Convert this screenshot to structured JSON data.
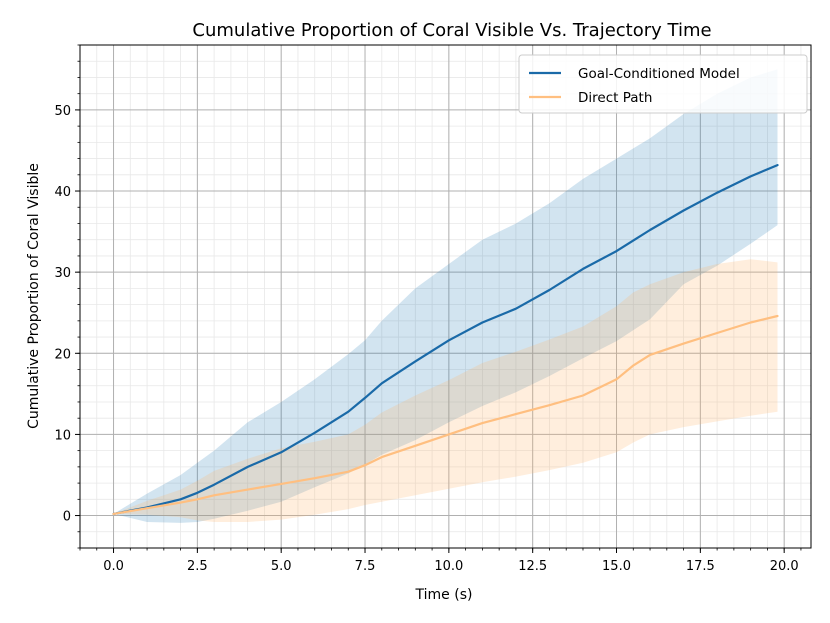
{
  "chart_data": {
    "type": "line",
    "title": "Cumulative Proportion of Coral Visible Vs. Trajectory Time",
    "xlabel": "Time (s)",
    "ylabel": "Cumulative Proportion of Coral Visible",
    "xlim": [
      -1.0,
      20.8
    ],
    "ylim": [
      -4.0,
      58.0
    ],
    "xticks": [
      0.0,
      2.5,
      5.0,
      7.5,
      10.0,
      12.5,
      15.0,
      17.5,
      20.0
    ],
    "xtick_labels": [
      "0.0",
      "2.5",
      "5.0",
      "7.5",
      "10.0",
      "12.5",
      "15.0",
      "17.5",
      "20.0"
    ],
    "yticks": [
      0,
      10,
      20,
      30,
      40,
      50
    ],
    "ytick_labels": [
      "0",
      "10",
      "20",
      "30",
      "40",
      "50"
    ],
    "x_minor_step": 0.5,
    "y_minor_step": 2,
    "grid": true,
    "legend_position": "top-right",
    "series": [
      {
        "name": "Goal-Conditioned Model",
        "color": "#1f77b4",
        "line_color": "#1a6aa8",
        "x": [
          0,
          1,
          2,
          2.5,
          3,
          4,
          5,
          6,
          7,
          7.5,
          8,
          9,
          10,
          11,
          12,
          13,
          14,
          15,
          16,
          17,
          18,
          19,
          19.8
        ],
        "mean": [
          0.2,
          1.0,
          2.0,
          2.8,
          3.8,
          6.0,
          7.8,
          10.2,
          12.8,
          14.5,
          16.3,
          19.0,
          21.6,
          23.8,
          25.5,
          27.8,
          30.4,
          32.6,
          35.2,
          37.6,
          39.8,
          41.8,
          43.2
        ],
        "lower": [
          0.2,
          -0.8,
          -0.9,
          -0.8,
          -0.4,
          0.6,
          1.7,
          3.5,
          5.2,
          6.3,
          7.5,
          9.3,
          11.5,
          13.5,
          15.2,
          17.2,
          19.4,
          21.5,
          24.2,
          28.5,
          30.8,
          33.5,
          35.8
        ],
        "upper": [
          0.2,
          2.7,
          5.0,
          6.5,
          8.0,
          11.5,
          14.0,
          16.8,
          19.9,
          21.6,
          24.0,
          28.0,
          31.0,
          34.0,
          36.0,
          38.5,
          41.5,
          44.0,
          46.5,
          49.5,
          52.0,
          54.0,
          55.0
        ]
      },
      {
        "name": "Direct Path",
        "color": "#ffb366",
        "line_color": "#ffbf80",
        "x": [
          0,
          1,
          2,
          2.5,
          3,
          4,
          5,
          6,
          7,
          7.5,
          8,
          9,
          10,
          11,
          12,
          13,
          14,
          15,
          15.5,
          16,
          17,
          18,
          19,
          19.8
        ],
        "mean": [
          0.2,
          0.9,
          1.6,
          2.0,
          2.5,
          3.2,
          3.9,
          4.6,
          5.4,
          6.2,
          7.2,
          8.6,
          10.0,
          11.4,
          12.5,
          13.6,
          14.8,
          16.8,
          18.5,
          19.8,
          21.2,
          22.5,
          23.8,
          24.6
        ],
        "lower": [
          0.2,
          0.1,
          -0.2,
          -0.6,
          -0.8,
          -0.8,
          -0.5,
          0.1,
          0.8,
          1.3,
          1.7,
          2.5,
          3.3,
          4.1,
          4.8,
          5.6,
          6.5,
          7.8,
          9.0,
          10.0,
          10.9,
          11.6,
          12.3,
          12.8
        ],
        "upper": [
          0.2,
          1.8,
          3.2,
          4.3,
          5.5,
          7.0,
          8.3,
          9.1,
          10.0,
          11.2,
          12.7,
          14.8,
          16.7,
          18.8,
          20.2,
          21.7,
          23.3,
          25.8,
          27.5,
          28.5,
          30.0,
          31.0,
          31.6,
          31.2
        ]
      }
    ]
  }
}
